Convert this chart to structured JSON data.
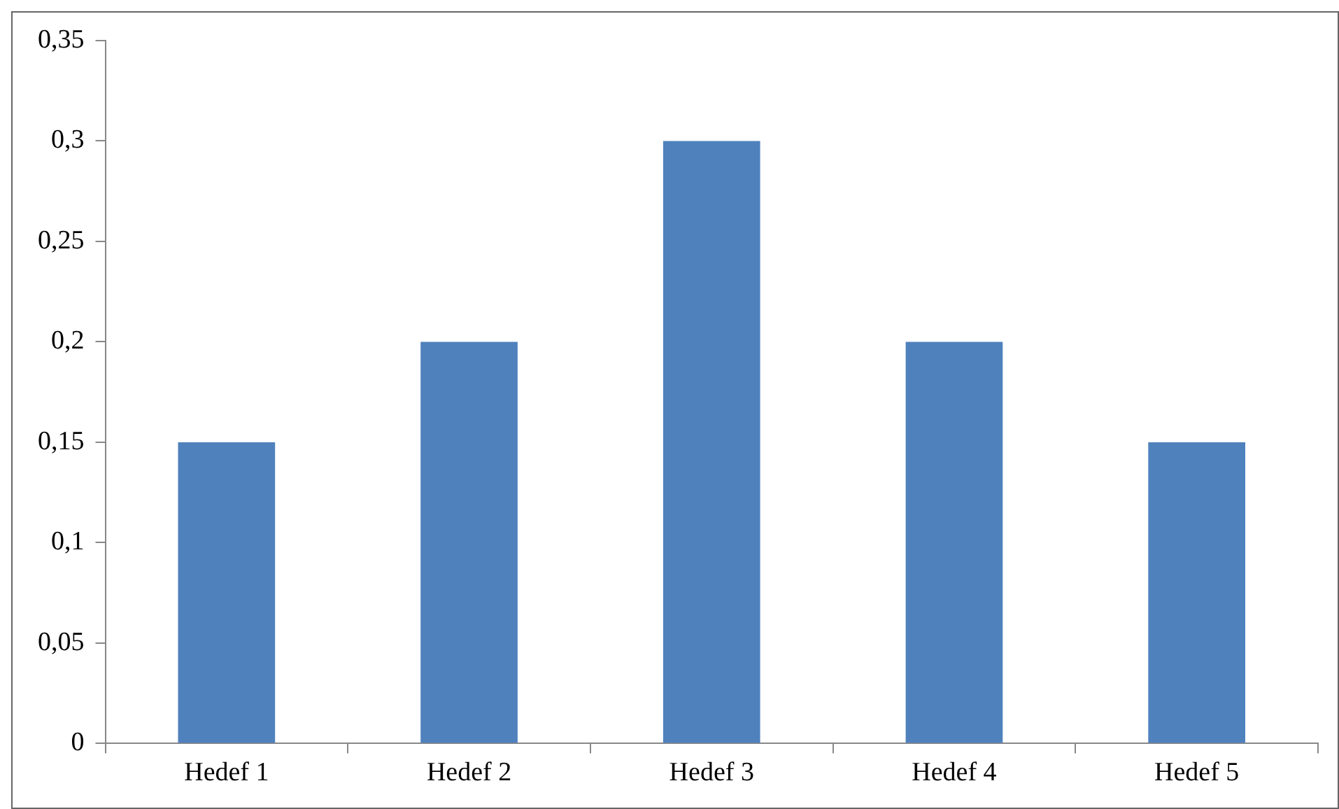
{
  "chart_data": {
    "type": "bar",
    "categories": [
      "Hedef 1",
      "Hedef 2",
      "Hedef 3",
      "Hedef 4",
      "Hedef 5"
    ],
    "values": [
      0.15,
      0.2,
      0.3,
      0.2,
      0.15
    ],
    "color": "#4f81bd",
    "ylim": [
      0,
      0.35
    ],
    "yticks": [
      0,
      {
        "value": 0.05,
        "label": "0,05"
      },
      {
        "value": 0.1,
        "label": "0,1"
      },
      {
        "value": 0.15,
        "label": "0,15"
      },
      {
        "value": 0.2,
        "label": "0,2"
      },
      {
        "value": 0.25,
        "label": "0,25"
      },
      {
        "value": 0.3,
        "label": "0,3"
      },
      {
        "value": 0.35,
        "label": "0,35"
      }
    ]
  }
}
